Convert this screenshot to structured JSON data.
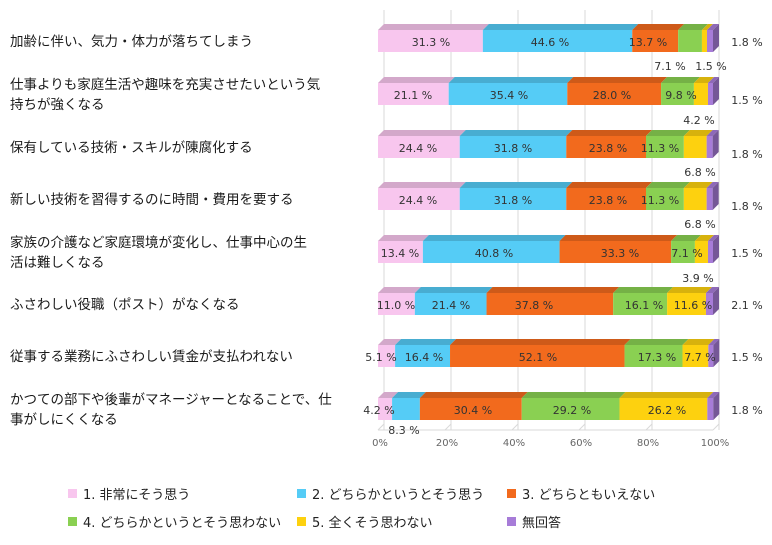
{
  "chart_data": {
    "type": "bar",
    "orientation": "horizontal",
    "stacked": true,
    "percent_stacked": true,
    "categories": [
      [
        "加齢に伴い、気力・体力が落ちてしまう"
      ],
      [
        "仕事よりも家庭生活や趣味を充実させたいという気",
        "持ちが強くなる"
      ],
      [
        "保有している技術・スキルが陳腐化する"
      ],
      [
        "新しい技術を習得するのに時間・費用を要する"
      ],
      [
        "家族の介護など家庭環境が変化し、仕事中心の生",
        "活は難しくなる"
      ],
      [
        "ふさわしい役職（ポスト）がなくなる"
      ],
      [
        "従事する業務にふさわしい賃金が支払われない"
      ],
      [
        "かつての部下や後輩がマネージャーとなることで、仕",
        "事がしにくくなる"
      ]
    ],
    "series": [
      {
        "name": "1. 非常にそう思う",
        "color": "#f8c6ee",
        "values": [
          31.3,
          21.1,
          24.4,
          24.4,
          13.4,
          11.0,
          5.1,
          4.2
        ],
        "labels": [
          "31.3 %",
          "21.1 %",
          "24.4 %",
          "24.4 %",
          "13.4 %",
          "11.0 %",
          "5.1 %",
          "4.2 %"
        ]
      },
      {
        "name": "2. どちらかというとそう思う",
        "color": "#55ccf6",
        "values": [
          44.6,
          35.4,
          31.8,
          31.8,
          40.8,
          21.4,
          16.4,
          8.3
        ],
        "labels": [
          "44.6 %",
          "35.4 %",
          "31.8 %",
          "31.8 %",
          "40.8 %",
          "21.4 %",
          "16.4 %",
          "8.3 %"
        ]
      },
      {
        "name": "3. どちらともいえない",
        "color": "#f26a1d",
        "values": [
          13.7,
          28.0,
          23.8,
          23.8,
          33.3,
          37.8,
          52.1,
          30.4
        ],
        "labels": [
          "13.7 %",
          "28.0 %",
          "23.8 %",
          "23.8 %",
          "33.3 %",
          "37.8 %",
          "52.1 %",
          "30.4 %"
        ]
      },
      {
        "name": "4. どちらかというとそう思わない",
        "color": "#8ad052",
        "values": [
          7.1,
          9.8,
          11.3,
          11.3,
          7.1,
          16.1,
          17.3,
          29.2
        ],
        "labels": [
          "7.1 %",
          "9.8 %",
          "11.3 %",
          "11.3 %",
          "7.1 %",
          "16.1 %",
          "17.3 %",
          "29.2 %"
        ]
      },
      {
        "name": "5. 全くそう思わない",
        "color": "#fdd10f",
        "values": [
          1.5,
          4.2,
          6.8,
          6.8,
          3.9,
          11.6,
          7.7,
          26.2
        ],
        "labels": [
          "1.5 %",
          "4.2 %",
          "6.8 %",
          "6.8 %",
          "3.9 %",
          "11.6 %",
          "7.7 %",
          "26.2 %"
        ]
      },
      {
        "name": "無回答",
        "color": "#a77cd8",
        "values": [
          1.8,
          1.5,
          1.8,
          1.8,
          1.5,
          2.1,
          1.5,
          1.8
        ],
        "labels": [
          "1.8 %",
          "1.5 %",
          "1.8 %",
          "1.8 %",
          "1.5 %",
          "2.1 %",
          "1.5 %",
          "1.8 %"
        ]
      }
    ],
    "xlim": [
      0,
      100
    ],
    "x_ticks": [
      "0%",
      "20%",
      "40%",
      "60%",
      "80%",
      "100%"
    ],
    "grid": true,
    "legend_position": "bottom"
  }
}
